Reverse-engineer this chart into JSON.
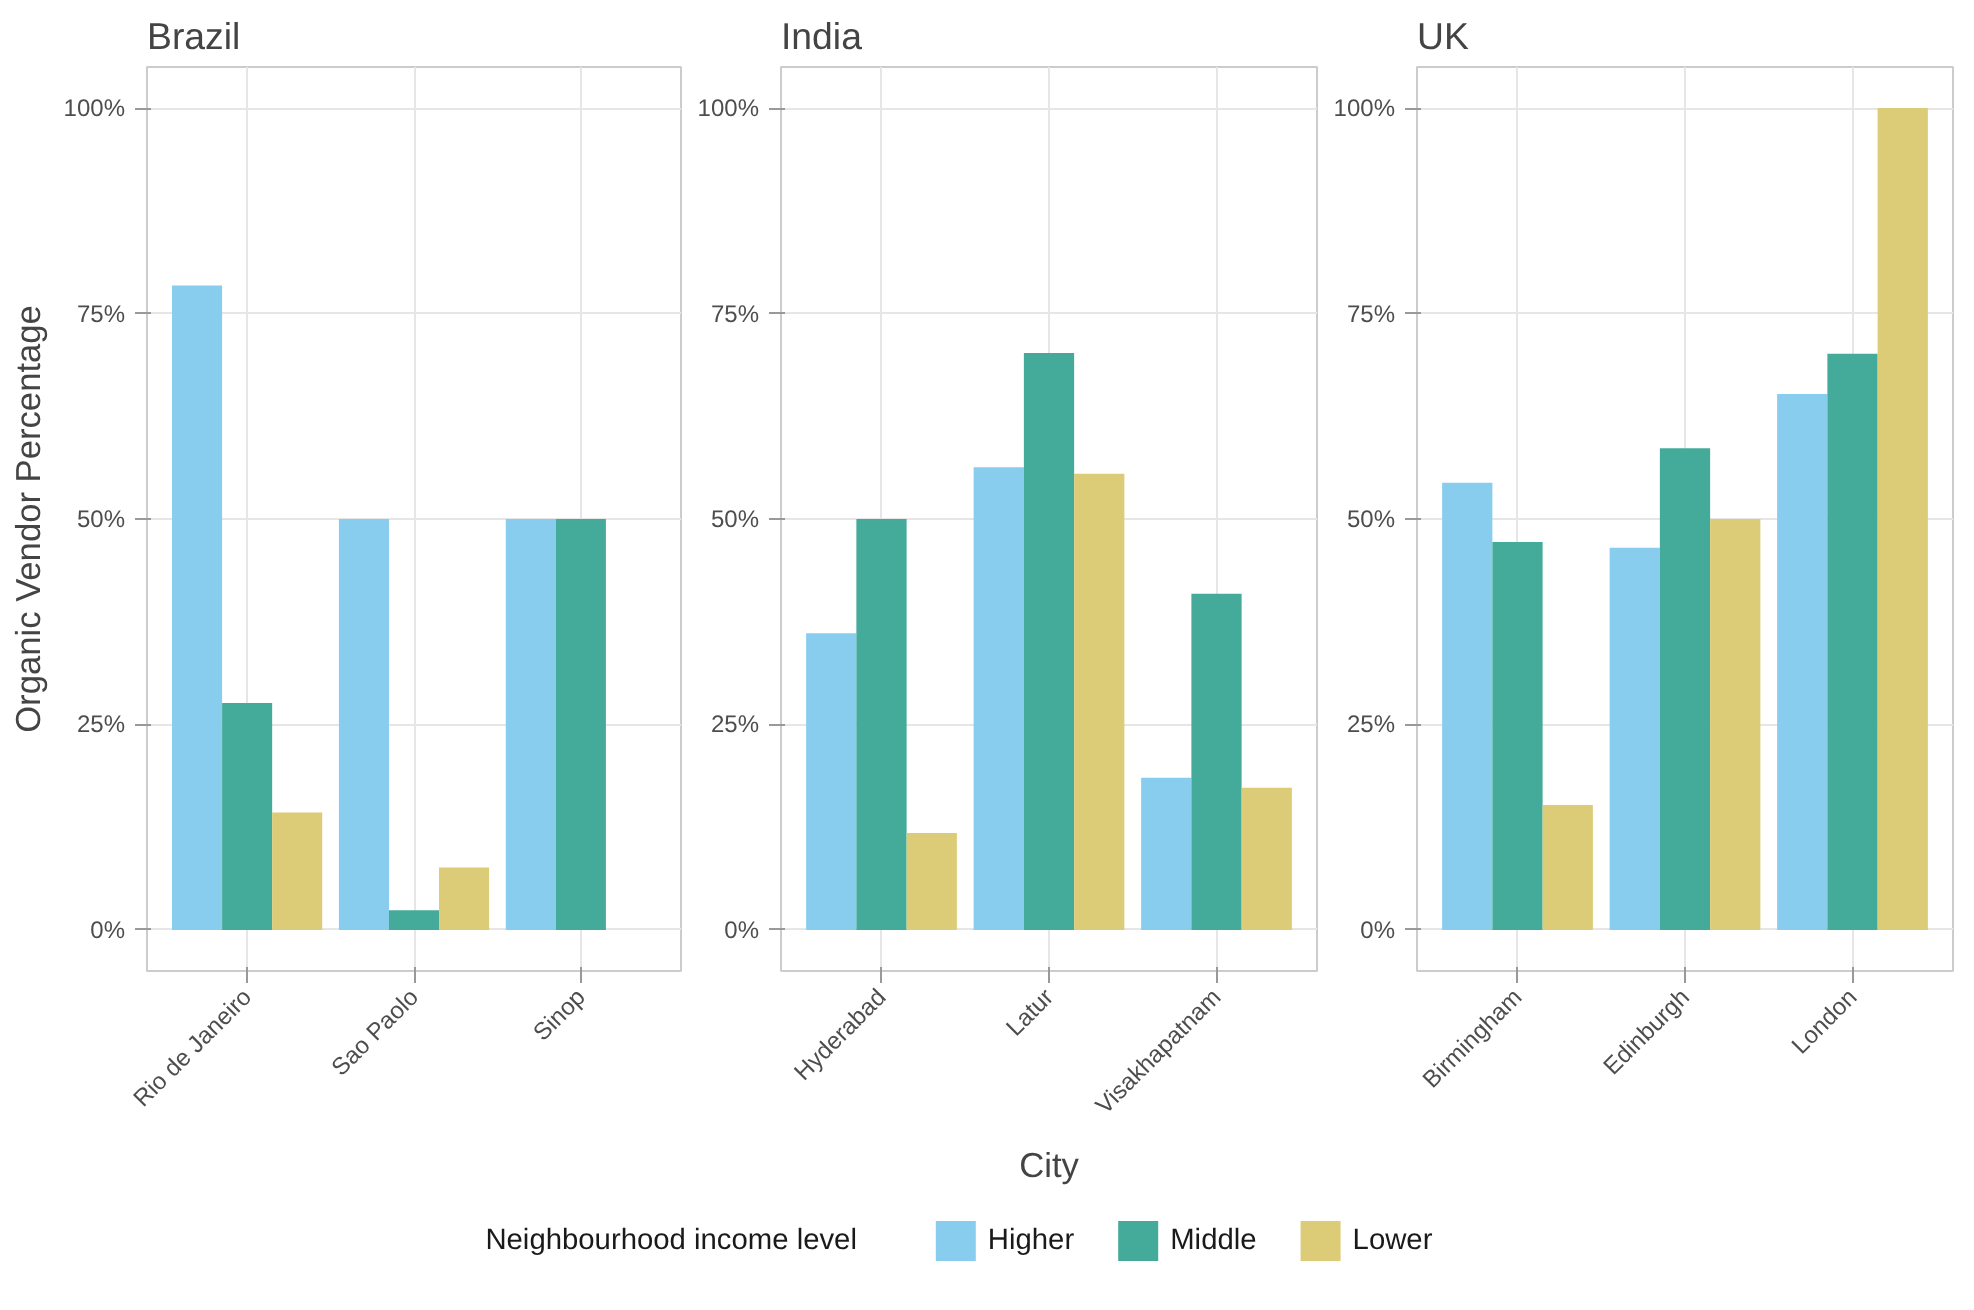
{
  "chart_data": [
    {
      "type": "bar",
      "title": "Brazil",
      "ylabel": "Organic Vendor Percentage",
      "categories": [
        "Rio de Janeiro",
        "Sao Paolo",
        "Sinop"
      ],
      "series": [
        {
          "color": "#88ccee",
          "values": [
            78.4,
            50,
            50
          ]
        },
        {
          "color": "#44aa99",
          "values": [
            27.6,
            2.4,
            50
          ]
        },
        {
          "color": "#ddcc77",
          "values": [
            14.3,
            7.6,
            null
          ]
        }
      ],
      "ylim": [
        -5,
        105
      ],
      "yticks": [
        {
          "value": 0,
          "label": "0%"
        },
        {
          "value": 25,
          "label": "25%"
        },
        {
          "value": 50,
          "label": "50%"
        },
        {
          "value": 75,
          "label": "75%"
        },
        {
          "value": 100,
          "label": "100%"
        }
      ],
      "grid": true
    },
    {
      "type": "bar",
      "title": "India",
      "xlabel": "City",
      "legend": "bottom",
      "legend_title": "Neighbourhood income level",
      "categories": [
        "Hyderabad",
        "Latur",
        "Visakhapatnam"
      ],
      "series": [
        {
          "name": "Higher",
          "color": "#88ccee",
          "values": [
            36.1,
            56.3,
            18.5
          ]
        },
        {
          "name": "Middle",
          "color": "#44aa99",
          "values": [
            50,
            70.2,
            40.9
          ]
        },
        {
          "name": "Lower",
          "color": "#ddcc77",
          "values": [
            11.8,
            55.5,
            17.3
          ]
        }
      ],
      "ylim": [
        -5,
        105
      ],
      "yticks": [
        {
          "value": 0,
          "label": "0%"
        },
        {
          "value": 25,
          "label": "25%"
        },
        {
          "value": 50,
          "label": "50%"
        },
        {
          "value": 75,
          "label": "75%"
        },
        {
          "value": 100,
          "label": "100%"
        }
      ],
      "grid": true
    },
    {
      "type": "bar",
      "title": "UK",
      "categories": [
        "Birmingham",
        "Edinburgh",
        "London"
      ],
      "series": [
        {
          "color": "#88ccee",
          "values": [
            54.4,
            46.5,
            65.2
          ]
        },
        {
          "color": "#44aa99",
          "values": [
            47.2,
            58.6,
            70.1
          ]
        },
        {
          "color": "#ddcc77",
          "values": [
            15.2,
            50,
            100
          ]
        }
      ],
      "ylim": [
        -5,
        105
      ],
      "yticks": [
        {
          "value": 0,
          "label": "0%"
        },
        {
          "value": 25,
          "label": "25%"
        },
        {
          "value": 50,
          "label": "50%"
        },
        {
          "value": 75,
          "label": "75%"
        },
        {
          "value": 100,
          "label": "100%"
        }
      ],
      "grid": true
    }
  ]
}
